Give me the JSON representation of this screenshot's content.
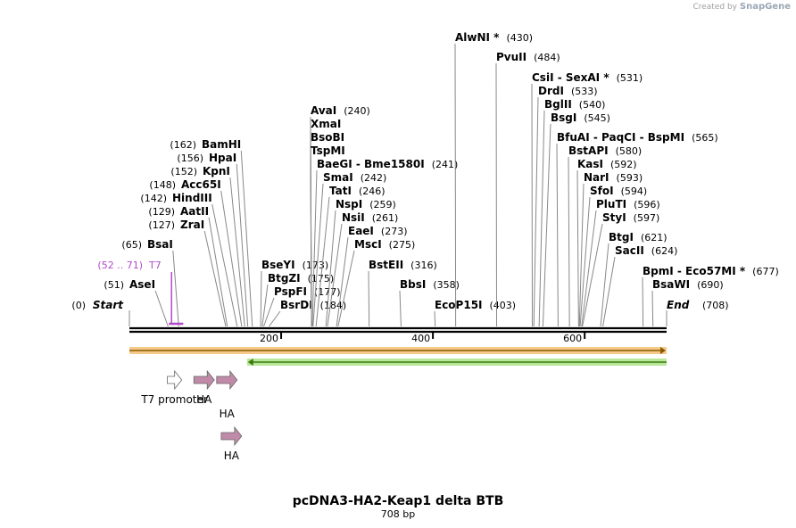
{
  "credit": {
    "prefix": "Created by",
    "brand": "SnapGene"
  },
  "title": "pcDNA3-HA2-Keap1 delta BTB",
  "subtitle": "708 bp",
  "map": {
    "length": 708,
    "start_label": "Start",
    "start_pos": "(0)",
    "end_label": "End",
    "end_pos": "(708)",
    "ticks": [
      {
        "v": 200,
        "label": "200"
      },
      {
        "v": 400,
        "label": "400"
      },
      {
        "v": 600,
        "label": "600"
      }
    ]
  },
  "sites": [
    {
      "id": "asei",
      "name": "AseI",
      "pos": "(51)",
      "bp": 51,
      "side": "left"
    },
    {
      "id": "bsai",
      "name": "BsaI",
      "pos": "(65)",
      "bp": 65,
      "side": "left"
    },
    {
      "id": "zrai",
      "name": "ZraI",
      "pos": "(127)",
      "bp": 127,
      "side": "left"
    },
    {
      "id": "aatii",
      "name": "AatII",
      "pos": "(129)",
      "bp": 129,
      "side": "left"
    },
    {
      "id": "hindiii",
      "name": "HindIII",
      "pos": "(142)",
      "bp": 142,
      "side": "left"
    },
    {
      "id": "acc65i",
      "name": "Acc65I",
      "pos": "(148)",
      "bp": 148,
      "side": "left"
    },
    {
      "id": "kpni",
      "name": "KpnI",
      "pos": "(152)",
      "bp": 152,
      "side": "left"
    },
    {
      "id": "hpai",
      "name": "HpaI",
      "pos": "(156)",
      "bp": 156,
      "side": "left"
    },
    {
      "id": "bamhi",
      "name": "BamHI",
      "pos": "(162)",
      "bp": 162,
      "side": "left"
    },
    {
      "id": "bseyi",
      "name": "BseYI",
      "pos": "(173)",
      "bp": 173,
      "side": "right"
    },
    {
      "id": "btgzi",
      "name": "BtgZI",
      "pos": "(175)",
      "bp": 175,
      "side": "right"
    },
    {
      "id": "pspfi",
      "name": "PspFI",
      "pos": "(177)",
      "bp": 177,
      "side": "right"
    },
    {
      "id": "bsrdi",
      "name": "BsrDI",
      "pos": "(184)",
      "bp": 184,
      "side": "right"
    },
    {
      "id": "avai",
      "name": "AvaI",
      "pos": "(240)",
      "bp": 240,
      "side": "right"
    },
    {
      "id": "xmai",
      "name": "XmaI",
      "pos": "",
      "bp": 240,
      "side": "right"
    },
    {
      "id": "bsobi",
      "name": "BsoBI",
      "pos": "",
      "bp": 240,
      "side": "right"
    },
    {
      "id": "tspmi",
      "name": "TspMI",
      "pos": "",
      "bp": 240,
      "side": "right"
    },
    {
      "id": "baegi",
      "name": "BaeGI  -  Bme1580I",
      "pos": "(241)",
      "bp": 241,
      "side": "right"
    },
    {
      "id": "smai",
      "name": "SmaI",
      "pos": "(242)",
      "bp": 242,
      "side": "right"
    },
    {
      "id": "tati",
      "name": "TatI",
      "pos": "(246)",
      "bp": 246,
      "side": "right"
    },
    {
      "id": "nspi",
      "name": "NspI",
      "pos": "(259)",
      "bp": 259,
      "side": "right"
    },
    {
      "id": "nsii",
      "name": "NsiI",
      "pos": "(261)",
      "bp": 261,
      "side": "right"
    },
    {
      "id": "eaei",
      "name": "EaeI",
      "pos": "(273)",
      "bp": 273,
      "side": "right"
    },
    {
      "id": "msci",
      "name": "MscI",
      "pos": "(275)",
      "bp": 275,
      "side": "right"
    },
    {
      "id": "bsteii",
      "name": "BstEII",
      "pos": "(316)",
      "bp": 316,
      "side": "right"
    },
    {
      "id": "bbsi",
      "name": "BbsI",
      "pos": "(358)",
      "bp": 358,
      "side": "right"
    },
    {
      "id": "ecop15i",
      "name": "EcoP15I",
      "pos": "(403)",
      "bp": 403,
      "side": "right"
    },
    {
      "id": "alwni",
      "name": "AlwNI *",
      "pos": "(430)",
      "bp": 430,
      "side": "right"
    },
    {
      "id": "pvuii",
      "name": "PvuII",
      "pos": "(484)",
      "bp": 484,
      "side": "right"
    },
    {
      "id": "csii",
      "name": "CsiI  -  SexAI *",
      "pos": "(531)",
      "bp": 531,
      "side": "right"
    },
    {
      "id": "drdi",
      "name": "DrdI",
      "pos": "(533)",
      "bp": 533,
      "side": "right"
    },
    {
      "id": "bglii",
      "name": "BglII",
      "pos": "(540)",
      "bp": 540,
      "side": "right"
    },
    {
      "id": "bsgi",
      "name": "BsgI",
      "pos": "(545)",
      "bp": 545,
      "side": "right"
    },
    {
      "id": "bfuai",
      "name": "BfuAI  -  PaqCI  -  BspMI",
      "pos": "(565)",
      "bp": 565,
      "side": "right"
    },
    {
      "id": "bstapi",
      "name": "BstAPI",
      "pos": "(580)",
      "bp": 580,
      "side": "right"
    },
    {
      "id": "kasi",
      "name": "KasI",
      "pos": "(592)",
      "bp": 592,
      "side": "right"
    },
    {
      "id": "nari",
      "name": "NarI",
      "pos": "(593)",
      "bp": 593,
      "side": "right"
    },
    {
      "id": "sfoi",
      "name": "SfoI",
      "pos": "(594)",
      "bp": 594,
      "side": "right"
    },
    {
      "id": "pluti",
      "name": "PluTI",
      "pos": "(596)",
      "bp": 596,
      "side": "right"
    },
    {
      "id": "styi",
      "name": "StyI",
      "pos": "(597)",
      "bp": 597,
      "side": "right"
    },
    {
      "id": "btgi",
      "name": "BtgI",
      "pos": "(621)",
      "bp": 621,
      "side": "right"
    },
    {
      "id": "sacii",
      "name": "SacII",
      "pos": "(624)",
      "bp": 624,
      "side": "right"
    },
    {
      "id": "bpmi",
      "name": "BpmI  -  Eco57MI *",
      "pos": "(677)",
      "bp": 677,
      "side": "right"
    },
    {
      "id": "bsawi",
      "name": "BsaWI",
      "pos": "(690)",
      "bp": 690,
      "side": "right"
    }
  ],
  "primer": {
    "name": "T7",
    "range": "(52 .. 71)",
    "start": 52,
    "end": 71,
    "color": "#b04cc8"
  },
  "features": [
    {
      "id": "orange",
      "name": "",
      "start": 0,
      "end": 708,
      "dir": "forward",
      "color": "#f5c98a",
      "stroke": "#8a5a00"
    },
    {
      "id": "green",
      "name": "",
      "start": 155,
      "end": 708,
      "dir": "reverse",
      "color": "#b9e79a",
      "stroke": "#3a7a10"
    }
  ],
  "small_features": [
    {
      "id": "t7-promoter",
      "label": "T7 promoter",
      "start": 50,
      "end": 69,
      "row": 0,
      "color": "#ffffff"
    },
    {
      "id": "ha1",
      "label": "HA",
      "start": 85,
      "end": 112,
      "row": 0,
      "color": "#c08aa8"
    },
    {
      "id": "ha2",
      "label": "HA",
      "start": 115,
      "end": 142,
      "row": 0,
      "color": "#c08aa8"
    },
    {
      "id": "ha3",
      "label": "HA",
      "start": 121,
      "end": 148,
      "row": 1,
      "color": "#c08aa8"
    }
  ]
}
